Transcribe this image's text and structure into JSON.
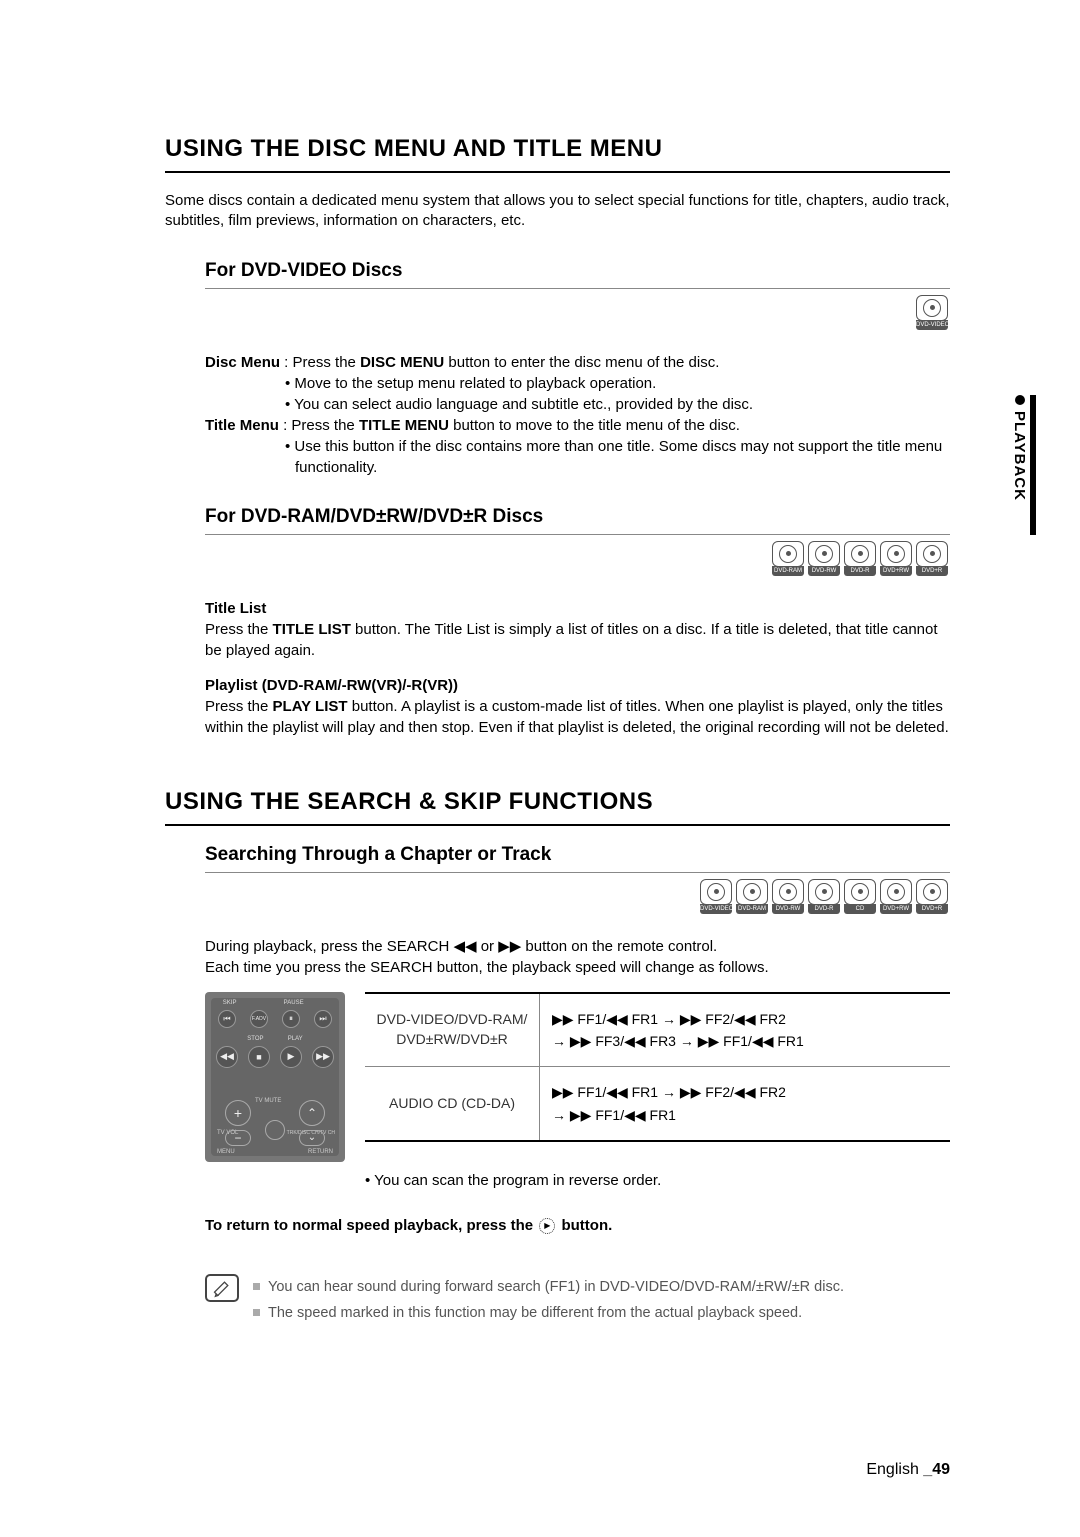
{
  "sidebar": {
    "label": "PLAYBACK"
  },
  "section1": {
    "title": "USING THE DISC MENU AND TITLE MENU",
    "intro": "Some discs contain a dedicated menu system that allows you to select special functions for title, chapters, audio track, subtitles, film previews, information on characters, etc.",
    "sub1": {
      "title": "For DVD-VIDEO Discs",
      "disc_icons": [
        "DVD-VIDEO"
      ],
      "disc_menu_label": "Disc Menu",
      "disc_menu_colon": " : Press the ",
      "disc_menu_btn": "DISC MENU",
      "disc_menu_rest": " button to enter the disc menu of the disc.",
      "bullet1": "Move to the setup menu related to playback operation.",
      "bullet2": "You can select audio language and subtitle etc., provided by the disc.",
      "title_menu_label": "Title Menu",
      "title_menu_colon": " : Press the ",
      "title_menu_btn": "TITLE MENU",
      "title_menu_rest": " button to move to the title menu of the disc.",
      "bullet3": "Use this button if the disc contains more than one title. Some discs may not support the title menu functionality."
    },
    "sub2": {
      "title": "For DVD-RAM/DVD±RW/DVD±R Discs",
      "disc_icons": [
        "DVD-RAM",
        "DVD-RW",
        "DVD-R",
        "DVD+RW",
        "DVD+R"
      ],
      "title_list_head": "Title List",
      "title_list_pre": "Press the ",
      "title_list_btn": "TITLE LIST",
      "title_list_rest": " button. The Title List is simply a list of titles on a disc. If a title is deleted, that title cannot be played again.",
      "playlist_head": "Playlist (DVD-RAM/-RW(VR)/-R(VR))",
      "playlist_pre": "Press the ",
      "playlist_btn": "PLAY LIST",
      "playlist_rest": " button. A playlist is a custom-made list of titles. When one playlist is played, only the titles within the playlist will play and then stop. Even if that playlist is deleted, the original recording will not be deleted."
    }
  },
  "section2": {
    "title": "USING THE SEARCH & SKIP FUNCTIONS",
    "sub1": {
      "title": "Searching Through a Chapter or Track",
      "disc_icons": [
        "DVD-VIDEO",
        "DVD-RAM",
        "DVD-RW",
        "DVD-R",
        "CD",
        "DVD+RW",
        "DVD+R"
      ],
      "line1_pre": "During playback, press the ",
      "line1_btn": "SEARCH",
      "line1_mid": " ◀◀ or ▶▶ button on the remote control.",
      "line2_pre": "Each time you press the ",
      "line2_btn": "SEARCH",
      "line2_rest": " button, the playback speed will change as follows.",
      "table": {
        "rows": [
          {
            "left": "DVD-VIDEO/DVD-RAM/\nDVD±RW/DVD±R",
            "right": "▶▶ FF1/◀◀ FR1 → ▶▶ FF2/◀◀ FR2\n→ ▶▶ FF3/◀◀ FR3 → ▶▶ FF1/◀◀ FR1"
          },
          {
            "left": "AUDIO CD (CD-DA)",
            "right": "▶▶ FF1/◀◀ FR1 → ▶▶ FF2/◀◀ FR2\n→ ▶▶ FF1/◀◀ FR1"
          }
        ]
      },
      "scan_note": "• You can scan the program in reverse order.",
      "return_pre": "To return to normal speed playback, press the ",
      "return_post": " button.",
      "notes": [
        "You can hear sound during forward search (FF1) in DVD-VIDEO/DVD-RAM/±RW/±R disc.",
        "The speed marked in this function may be different from the actual playback speed."
      ]
    }
  },
  "remote": {
    "top_labels": [
      "SKIP",
      "PAUSE"
    ],
    "row1": [
      "⏮",
      "F.ADV",
      "⏸",
      "⏭"
    ],
    "mid_labels": [
      "STOP",
      "PLAY"
    ],
    "row2": [
      "◀◀",
      "■",
      "▶",
      "▶▶"
    ],
    "tv_mute": "TV MUTE",
    "tv_vol": "TV VOL",
    "trk": "TRK/DISC CH/TV CH",
    "bottom_l": "MENU",
    "bottom_r": "RETURN"
  },
  "footer": {
    "lang": "English",
    "page": "_49"
  },
  "colors": {
    "text": "#000000",
    "border_light": "#888888",
    "note_text": "#555555",
    "remote_bg": "#777777",
    "icon_border": "#555555"
  }
}
